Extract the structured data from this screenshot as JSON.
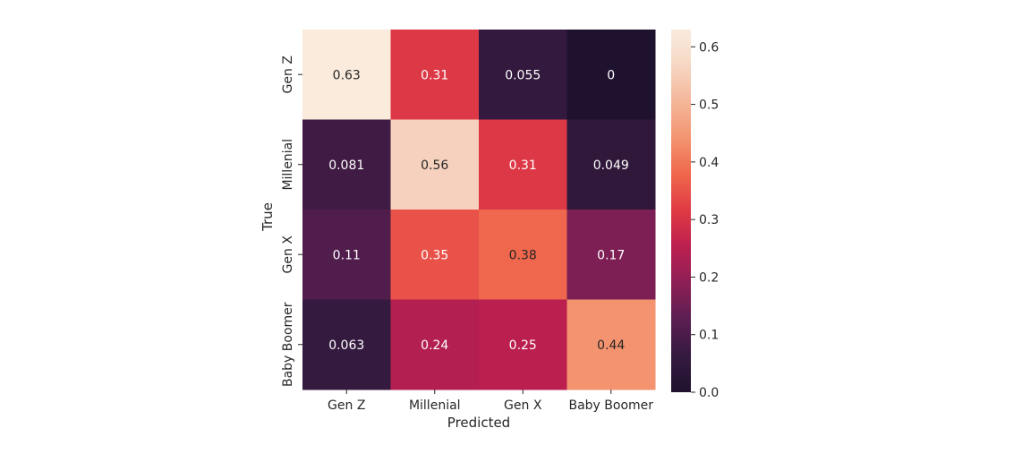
{
  "chart_data": {
    "type": "heatmap",
    "title": "",
    "xlabel": "Predicted",
    "ylabel": "True",
    "x_categories": [
      "Gen Z",
      "Millenial",
      "Gen X",
      "Baby Boomer"
    ],
    "y_categories": [
      "Gen Z",
      "Millenial",
      "Gen X",
      "Baby Boomer"
    ],
    "values": [
      [
        0.63,
        0.31,
        0.055,
        0
      ],
      [
        0.081,
        0.56,
        0.31,
        0.049
      ],
      [
        0.11,
        0.35,
        0.38,
        0.17
      ],
      [
        0.063,
        0.24,
        0.25,
        0.44
      ]
    ],
    "value_labels": [
      [
        "0.63",
        "0.31",
        "0.055",
        "0"
      ],
      [
        "0.081",
        "0.56",
        "0.31",
        "0.049"
      ],
      [
        "0.11",
        "0.35",
        "0.38",
        "0.17"
      ],
      [
        "0.063",
        "0.24",
        "0.25",
        "0.44"
      ]
    ],
    "colormap": "rocket",
    "vmin": 0,
    "vmax": 0.63,
    "colorbar": {
      "ticks": [
        0.0,
        0.1,
        0.2,
        0.3,
        0.4,
        0.5,
        0.6
      ],
      "tick_labels": [
        "0.0",
        "0.1",
        "0.2",
        "0.3",
        "0.4",
        "0.5",
        "0.6"
      ]
    },
    "grid": false,
    "legend": "colorbar-right"
  }
}
